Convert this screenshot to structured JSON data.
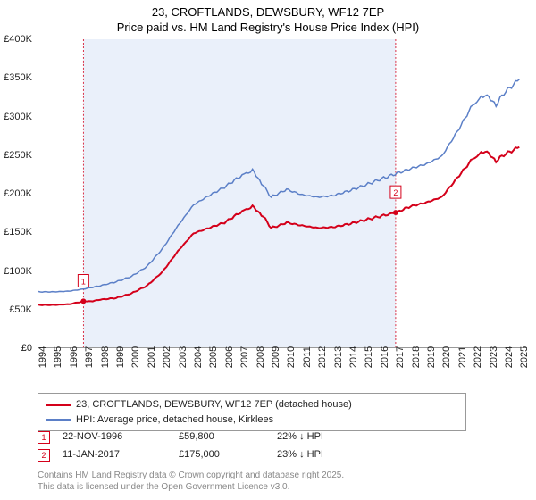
{
  "title": {
    "line1": "23, CROFTLANDS, DEWSBURY, WF12 7EP",
    "line2": "Price paid vs. HM Land Registry's House Price Index (HPI)"
  },
  "chart": {
    "type": "line",
    "xlim": [
      1994,
      2025.5
    ],
    "ylim": [
      0,
      400000
    ],
    "ytick_step": 50000,
    "y_ticks": [
      "£0",
      "£50K",
      "£100K",
      "£150K",
      "£200K",
      "£250K",
      "£300K",
      "£350K",
      "£400K"
    ],
    "x_ticks": [
      1994,
      1995,
      1996,
      1997,
      1998,
      1999,
      2000,
      2001,
      2002,
      2003,
      2004,
      2005,
      2006,
      2007,
      2008,
      2009,
      2010,
      2011,
      2012,
      2013,
      2014,
      2015,
      2016,
      2017,
      2018,
      2019,
      2020,
      2021,
      2022,
      2023,
      2024,
      2025
    ],
    "background_color": "#ffffff",
    "band_color": "#eaf0fa",
    "grid_color": "#e0e0e0",
    "series": [
      {
        "name": "paid",
        "label": "23, CROFTLANDS, DEWSBURY, WF12 7EP (detached house)",
        "color": "#d4001a",
        "width": 2,
        "points": [
          [
            1994,
            55000
          ],
          [
            1995,
            55000
          ],
          [
            1996,
            56000
          ],
          [
            1996.9,
            59800
          ],
          [
            1997.5,
            60000
          ],
          [
            1998,
            62000
          ],
          [
            1999,
            64000
          ],
          [
            2000,
            70000
          ],
          [
            2001,
            80000
          ],
          [
            2002,
            98000
          ],
          [
            2003,
            125000
          ],
          [
            2004,
            148000
          ],
          [
            2005,
            155000
          ],
          [
            2006,
            162000
          ],
          [
            2007,
            175000
          ],
          [
            2007.8,
            183000
          ],
          [
            2008.5,
            170000
          ],
          [
            2009,
            155000
          ],
          [
            2009.5,
            158000
          ],
          [
            2010,
            162000
          ],
          [
            2011,
            158000
          ],
          [
            2012,
            155000
          ],
          [
            2013,
            156000
          ],
          [
            2014,
            160000
          ],
          [
            2015,
            165000
          ],
          [
            2016,
            170000
          ],
          [
            2017.03,
            175000
          ],
          [
            2018,
            183000
          ],
          [
            2019,
            188000
          ],
          [
            2020,
            195000
          ],
          [
            2021,
            220000
          ],
          [
            2022,
            245000
          ],
          [
            2022.8,
            255000
          ],
          [
            2023.5,
            242000
          ],
          [
            2024,
            250000
          ],
          [
            2025,
            260000
          ]
        ]
      },
      {
        "name": "hpi",
        "label": "HPI: Average price, detached house, Kirklees",
        "color": "#5b7fc7",
        "width": 1.5,
        "points": [
          [
            1994,
            72000
          ],
          [
            1995,
            72000
          ],
          [
            1996,
            73000
          ],
          [
            1997,
            76000
          ],
          [
            1998,
            80000
          ],
          [
            1999,
            85000
          ],
          [
            2000,
            92000
          ],
          [
            2001,
            105000
          ],
          [
            2002,
            128000
          ],
          [
            2003,
            158000
          ],
          [
            2004,
            185000
          ],
          [
            2005,
            197000
          ],
          [
            2006,
            208000
          ],
          [
            2007,
            222000
          ],
          [
            2007.8,
            230000
          ],
          [
            2008.5,
            210000
          ],
          [
            2009,
            195000
          ],
          [
            2009.5,
            200000
          ],
          [
            2010,
            205000
          ],
          [
            2011,
            198000
          ],
          [
            2012,
            195000
          ],
          [
            2013,
            197000
          ],
          [
            2014,
            203000
          ],
          [
            2015,
            210000
          ],
          [
            2016,
            218000
          ],
          [
            2017,
            225000
          ],
          [
            2018,
            232000
          ],
          [
            2019,
            238000
          ],
          [
            2020,
            248000
          ],
          [
            2021,
            280000
          ],
          [
            2022,
            315000
          ],
          [
            2022.8,
            328000
          ],
          [
            2023.5,
            315000
          ],
          [
            2024,
            330000
          ],
          [
            2025,
            348000
          ]
        ]
      }
    ],
    "band": {
      "start": 1996.9,
      "end": 2017.03
    },
    "markers": [
      {
        "n": "1",
        "x": 1996.9,
        "y": 59800,
        "color": "#d4001a"
      },
      {
        "n": "2",
        "x": 2017.03,
        "y": 175000,
        "color": "#d4001a"
      }
    ]
  },
  "legend": [
    {
      "color": "#d4001a",
      "label": "23, CROFTLANDS, DEWSBURY, WF12 7EP (detached house)"
    },
    {
      "color": "#5b7fc7",
      "label": "HPI: Average price, detached house, Kirklees"
    }
  ],
  "transactions": [
    {
      "n": "1",
      "color": "#d4001a",
      "date": "22-NOV-1996",
      "price": "£59,800",
      "diff": "22% ↓ HPI"
    },
    {
      "n": "2",
      "color": "#d4001a",
      "date": "11-JAN-2017",
      "price": "£175,000",
      "diff": "23% ↓ HPI"
    }
  ],
  "footer": {
    "line1": "Contains HM Land Registry data © Crown copyright and database right 2025.",
    "line2": "This data is licensed under the Open Government Licence v3.0."
  }
}
